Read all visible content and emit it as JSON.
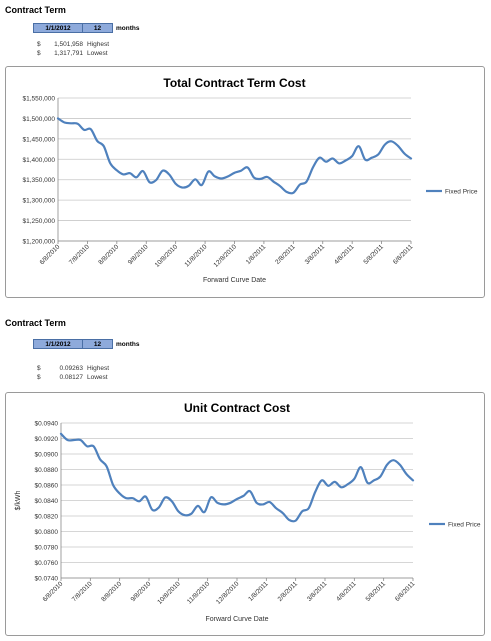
{
  "section1": {
    "title": "Contract Term",
    "start_date": "1/1/2012",
    "months_value": "12",
    "months_label": "months",
    "stats": [
      {
        "currency": "$",
        "value": "1,501,958",
        "label": "Highest"
      },
      {
        "currency": "$",
        "value": "1,317,791",
        "label": "Lowest"
      }
    ]
  },
  "section2": {
    "title": "Contract Term",
    "start_date": "1/1/2012",
    "months_value": "12",
    "months_label": "months",
    "stats": [
      {
        "currency": "$",
        "value": "0.09263",
        "label": "Highest"
      },
      {
        "currency": "$",
        "value": "0.08127",
        "label": "Lowest"
      }
    ]
  },
  "chart_data": [
    {
      "type": "line",
      "title": "Total Contract Term Cost",
      "xlabel": "Forward Curve Date",
      "ylabel": "",
      "ylim": [
        1200000,
        1550000
      ],
      "y_ticks": [
        1200000,
        1250000,
        1300000,
        1350000,
        1400000,
        1450000,
        1500000,
        1550000
      ],
      "y_tick_labels": [
        "$1,200,000",
        "$1,250,000",
        "$1,300,000",
        "$1,350,000",
        "$1,400,000",
        "$1,450,000",
        "$1,500,000",
        "$1,550,000"
      ],
      "x_tick_labels": [
        "6/8/2010",
        "7/8/2010",
        "8/8/2010",
        "9/8/2010",
        "10/8/2010",
        "11/8/2010",
        "12/8/2010",
        "1/8/2011",
        "2/8/2011",
        "3/8/2011",
        "4/8/2011",
        "5/8/2011",
        "6/8/2011"
      ],
      "legend_position": "right",
      "grid": true,
      "color": "#4f81bd",
      "series": [
        {
          "name": "Fixed Price",
          "values": [
            1500000,
            1490000,
            1488000,
            1487000,
            1472000,
            1474000,
            1445000,
            1432000,
            1390000,
            1373000,
            1363000,
            1366000,
            1356000,
            1371000,
            1344000,
            1349000,
            1372000,
            1363000,
            1340000,
            1331000,
            1335000,
            1351000,
            1337000,
            1370000,
            1358000,
            1353000,
            1358000,
            1367000,
            1372000,
            1380000,
            1355000,
            1352000,
            1357000,
            1345000,
            1334000,
            1320000,
            1318000,
            1338000,
            1345000,
            1380000,
            1404000,
            1394000,
            1402000,
            1390000,
            1397000,
            1408000,
            1432000,
            1399000,
            1404000,
            1412000,
            1436000,
            1444000,
            1433000,
            1414000,
            1402000
          ]
        }
      ]
    },
    {
      "type": "line",
      "title": "Unit Contract Cost",
      "xlabel": "Forward Curve Date",
      "ylabel": "$/kWh",
      "ylim": [
        0.074,
        0.094
      ],
      "y_ticks": [
        0.074,
        0.076,
        0.078,
        0.08,
        0.082,
        0.084,
        0.086,
        0.088,
        0.09,
        0.092,
        0.094
      ],
      "y_tick_labels": [
        "$0.0740",
        "$0.0760",
        "$0.0780",
        "$0.0800",
        "$0.0820",
        "$0.0840",
        "$0.0860",
        "$0.0880",
        "$0.0900",
        "$0.0920",
        "$0.0940"
      ],
      "x_tick_labels": [
        "6/8/2010",
        "7/8/2010",
        "8/8/2010",
        "9/8/2010",
        "10/8/2010",
        "11/8/2010",
        "12/8/2010",
        "1/8/2011",
        "2/8/2011",
        "3/8/2011",
        "4/8/2011",
        "5/8/2011",
        "6/8/2011"
      ],
      "legend_position": "right",
      "grid": true,
      "color": "#4f81bd",
      "series": [
        {
          "name": "Fixed Price",
          "values": [
            0.0926,
            0.0918,
            0.0918,
            0.0918,
            0.091,
            0.091,
            0.0893,
            0.0884,
            0.086,
            0.0849,
            0.0843,
            0.0843,
            0.0839,
            0.0845,
            0.0828,
            0.0831,
            0.0844,
            0.0839,
            0.0826,
            0.0821,
            0.0823,
            0.0833,
            0.0825,
            0.0844,
            0.0837,
            0.0835,
            0.0837,
            0.0842,
            0.0846,
            0.0852,
            0.0837,
            0.0835,
            0.0838,
            0.083,
            0.0824,
            0.0815,
            0.0814,
            0.0826,
            0.083,
            0.0851,
            0.0866,
            0.0859,
            0.0864,
            0.0857,
            0.0861,
            0.0868,
            0.0883,
            0.0863,
            0.0866,
            0.0871,
            0.0886,
            0.0892,
            0.0886,
            0.0874,
            0.0866
          ]
        }
      ]
    }
  ]
}
